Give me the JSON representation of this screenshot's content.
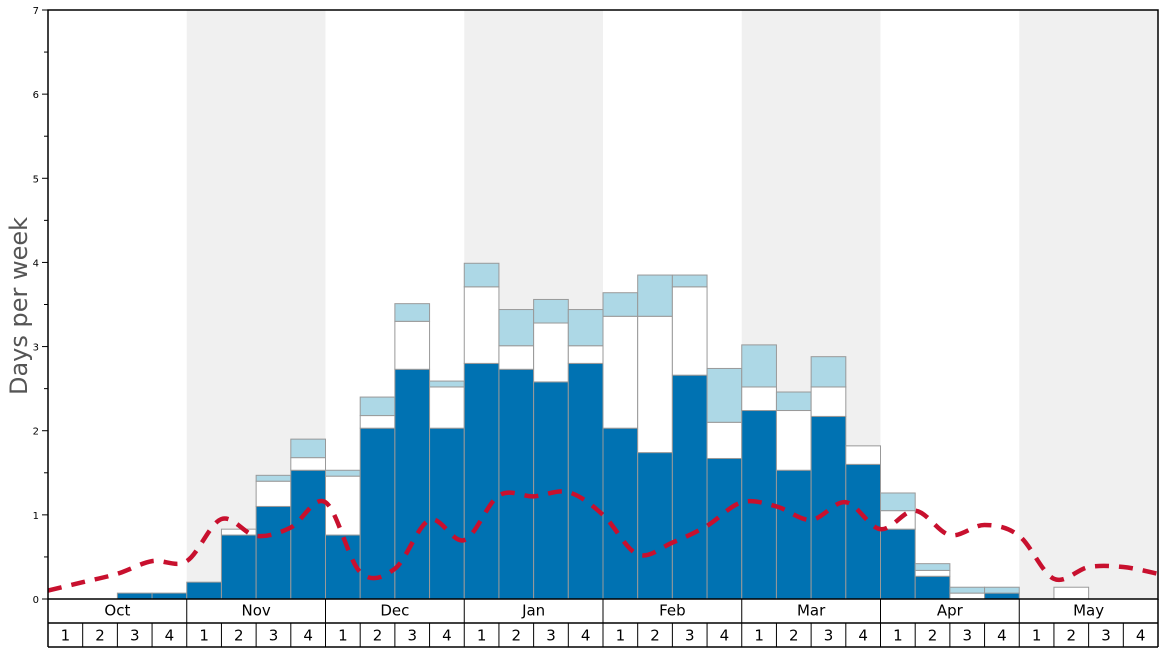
{
  "chart_data": {
    "type": "bar",
    "stacked": true,
    "ylabel": "Days per week",
    "ylim": [
      0,
      7
    ],
    "yticks": [
      "0",
      "1",
      "2",
      "3",
      "4",
      "5",
      "6",
      "7"
    ],
    "months": [
      "Oct",
      "Nov",
      "Dec",
      "Jan",
      "Feb",
      "Mar",
      "Apr",
      "May"
    ],
    "week_labels": [
      "1",
      "2",
      "3",
      "4"
    ],
    "month_bands": "alternating",
    "colors": {
      "series1": "#0072b2",
      "series2": "#ffffff",
      "series3": "#add8e6",
      "line": "#c8102e",
      "band": "#f0f0f0"
    },
    "series": [
      {
        "values": [
          0,
          0,
          0.07,
          0.07,
          0.2,
          0.76,
          1.1,
          1.53,
          0.76,
          2.03,
          2.73,
          2.03,
          2.8,
          2.73,
          2.58,
          2.8,
          2.03,
          1.74,
          2.66,
          1.67,
          2.24,
          1.53,
          2.17,
          1.6,
          0.83,
          0.27,
          0,
          0.07,
          0,
          0,
          0,
          0
        ]
      },
      {
        "values": [
          0,
          0,
          0,
          0,
          0,
          0.07,
          0.3,
          0.15,
          0.7,
          0.15,
          0.57,
          0.49,
          0.91,
          0.28,
          0.7,
          0.21,
          1.33,
          1.62,
          1.05,
          0.43,
          0.28,
          0.71,
          0.35,
          0.22,
          0.22,
          0.07,
          0.07,
          0,
          0,
          0.14,
          0,
          0
        ]
      },
      {
        "values": [
          0,
          0,
          0,
          0,
          0,
          0,
          0.07,
          0.22,
          0.07,
          0.22,
          0.21,
          0.07,
          0.28,
          0.43,
          0.28,
          0.43,
          0.28,
          0.49,
          0.14,
          0.64,
          0.5,
          0.22,
          0.36,
          0,
          0.21,
          0.08,
          0.07,
          0.07,
          0,
          0,
          0,
          0
        ]
      }
    ],
    "line_values": [
      0.1,
      0.2,
      0.3,
      0.45,
      0.45,
      0.95,
      0.75,
      0.85,
      1.15,
      0.32,
      0.36,
      0.94,
      0.7,
      1.23,
      1.22,
      1.27,
      1.0,
      0.53,
      0.67,
      0.87,
      1.15,
      1.1,
      0.94,
      1.15,
      0.83,
      1.05,
      0.76,
      0.88,
      0.75,
      0.24,
      0.38,
      0.38,
      0.3
    ]
  }
}
